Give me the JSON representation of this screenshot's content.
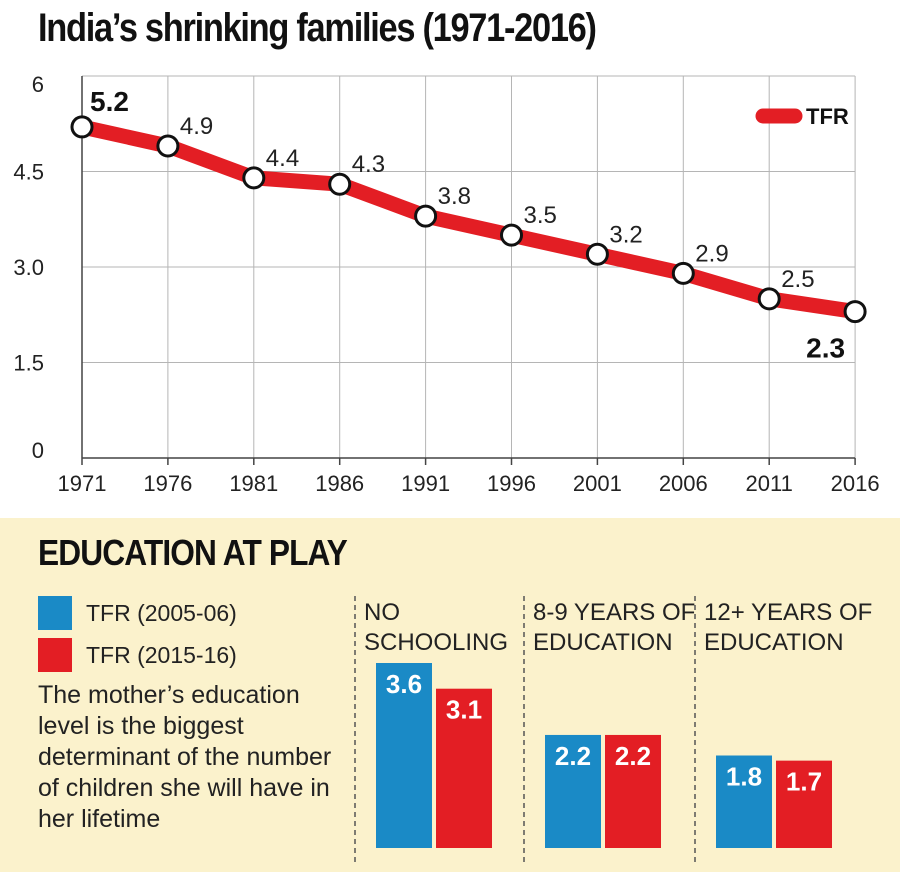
{
  "title": "India’s shrinking families (1971-2016)",
  "colors": {
    "line": "#e31e24",
    "blue": "#1a8ac6",
    "red": "#e31e24",
    "panel": "#fbf2cc",
    "grid": "#b5b5b5"
  },
  "chart_data": [
    {
      "type": "line",
      "title": "India’s shrinking families (1971-2016)",
      "x": [
        "1971",
        "1976",
        "1981",
        "1986",
        "1991",
        "1996",
        "2001",
        "2006",
        "2011",
        "2016"
      ],
      "series": [
        {
          "name": "TFR",
          "values": [
            5.2,
            4.9,
            4.4,
            4.3,
            3.8,
            3.5,
            3.2,
            2.9,
            2.5,
            2.3
          ]
        }
      ],
      "point_labels": [
        "5.2",
        "4.9",
        "4.4",
        "4.3",
        "3.8",
        "3.5",
        "3.2",
        "2.9",
        "2.5",
        "2.3"
      ],
      "y_ticks": [
        "0",
        "1.5",
        "3.0",
        "4.5",
        "6"
      ],
      "y_tick_values": [
        0,
        1.5,
        3.0,
        4.5,
        6
      ],
      "ylim": [
        0,
        6
      ],
      "grid": true,
      "legend": "top-right"
    },
    {
      "type": "bar",
      "title": "EDUCATION AT PLAY",
      "categories": [
        "NO SCHOOLING",
        "8-9 YEARS OF EDUCATION",
        "12+ YEARS OF EDUCATION"
      ],
      "category_lines": [
        [
          "NO",
          "SCHOOLING"
        ],
        [
          "8-9 YEARS OF",
          "EDUCATION"
        ],
        [
          "12+ YEARS OF",
          "EDUCATION"
        ]
      ],
      "series": [
        {
          "name": "TFR (2005-06)",
          "values": [
            3.6,
            2.2,
            1.8
          ],
          "labels": [
            "3.6",
            "2.2",
            "1.8"
          ]
        },
        {
          "name": "TFR (2015-16)",
          "values": [
            3.1,
            2.2,
            1.7
          ],
          "labels": [
            "3.1",
            "2.2",
            "1.7"
          ]
        }
      ],
      "ylim": [
        0,
        3.6
      ],
      "legend": "left"
    }
  ],
  "education": {
    "title": "EDUCATION AT PLAY",
    "legend": [
      "TFR (2005-06)",
      "TFR (2015-16)"
    ],
    "note": "The mother’s education level is the biggest determinant of the number of children she will have in her lifetime"
  }
}
